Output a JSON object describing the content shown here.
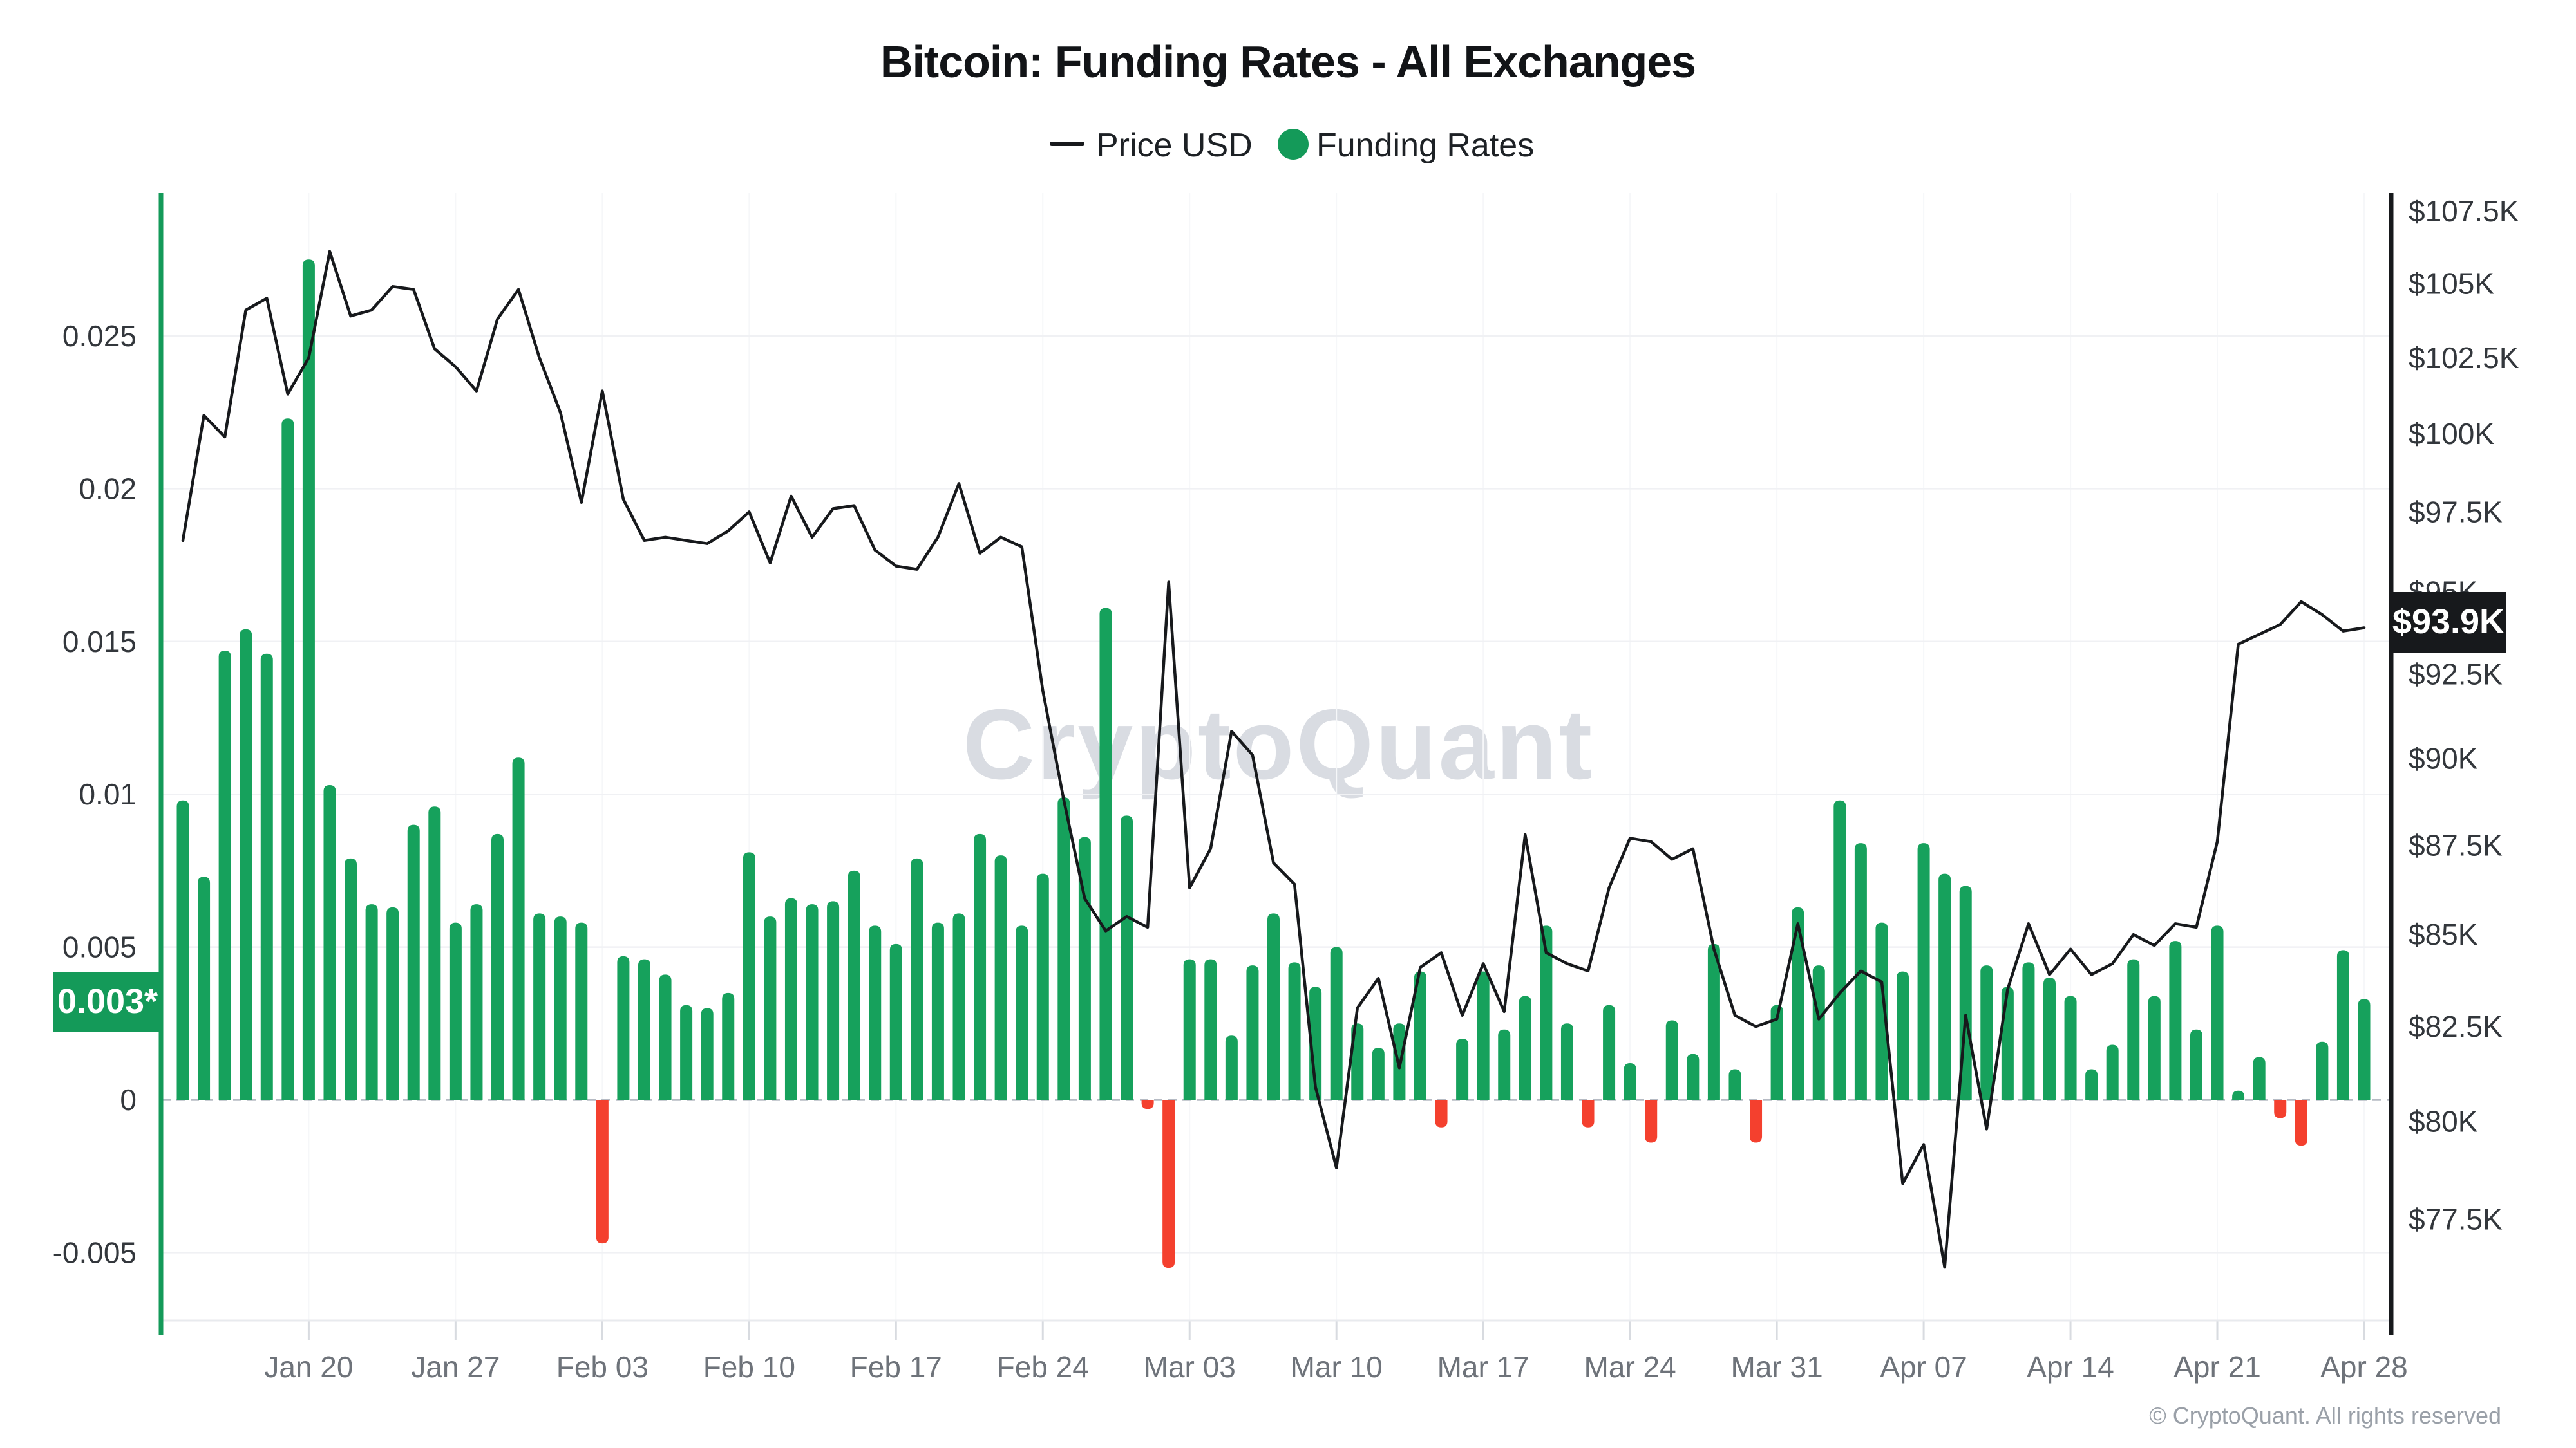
{
  "title": "Bitcoin: Funding Rates - All Exchanges",
  "legend": {
    "price": {
      "label": "Price USD",
      "color": "#17191c",
      "icon": "dash"
    },
    "funding": {
      "label": "Funding Rates",
      "color": "#149a59",
      "icon": "dot"
    }
  },
  "watermark": "CryptoQuant",
  "footer": "© CryptoQuant. All rights reserved",
  "badges": {
    "funding_current": {
      "text": "0.003*",
      "bg": "#149a59"
    },
    "price_current": {
      "text": "$93.9K",
      "bg": "#17191c"
    }
  },
  "colors": {
    "bar_positive": "#16a15c",
    "bar_negative": "#f4402e",
    "price_line": "#17191c",
    "left_axis": "#149a59",
    "right_axis": "#17191c",
    "gridline": "#f0f1f4",
    "weekly_gridline": "#f6f7f9",
    "zero_line": "#b6bbc4",
    "bottom_axis": "#e8eaee",
    "tick_mark": "#d8dbe0"
  },
  "axes": {
    "left": {
      "name": "Funding Rates",
      "tick_values": [
        0.025,
        0.02,
        0.015,
        0.01,
        0.005,
        0,
        -0.005
      ],
      "tick_labels": [
        "0.025",
        "0.02",
        "0.015",
        "0.01",
        "0.005",
        "0",
        "-0.005"
      ]
    },
    "right": {
      "name": "Price USD",
      "scale": "log",
      "tick_values_k": [
        107.5,
        105,
        102.5,
        100,
        97.5,
        95,
        92.5,
        90,
        87.5,
        85,
        82.5,
        80,
        77.5
      ],
      "tick_labels": [
        "$107.5K",
        "$105K",
        "$102.5K",
        "$100K",
        "$97.5K",
        "$95K",
        "$92.5K",
        "$90K",
        "$87.5K",
        "$85K",
        "$82.5K",
        "$80K",
        "$77.5K"
      ]
    },
    "x": {
      "week_labels": [
        "Jan 20",
        "Jan 27",
        "Feb 03",
        "Feb 10",
        "Feb 17",
        "Feb 24",
        "Mar 03",
        "Mar 10",
        "Mar 17",
        "Mar 24",
        "Mar 31",
        "Apr 07",
        "Apr 14",
        "Apr 21",
        "Apr 28"
      ],
      "week_label_indices": [
        6,
        13,
        20,
        27,
        34,
        41,
        48,
        55,
        62,
        69,
        76,
        83,
        90,
        97,
        104
      ]
    }
  },
  "chart_data": {
    "type": [
      "bar",
      "line"
    ],
    "title": "Bitcoin: Funding Rates - All Exchanges",
    "legend_position": "top",
    "grid": true,
    "left_ylim": [
      -0.0075,
      0.0295
    ],
    "right_ylim_k": [
      75.5,
      108.5
    ],
    "right_scale": "log",
    "categories": [
      "Jan 14",
      "Jan 15",
      "Jan 16",
      "Jan 17",
      "Jan 18",
      "Jan 19",
      "Jan 20",
      "Jan 21",
      "Jan 22",
      "Jan 23",
      "Jan 24",
      "Jan 25",
      "Jan 26",
      "Jan 27",
      "Jan 28",
      "Jan 29",
      "Jan 30",
      "Jan 31",
      "Feb 01",
      "Feb 02",
      "Feb 03",
      "Feb 04",
      "Feb 05",
      "Feb 06",
      "Feb 07",
      "Feb 08",
      "Feb 09",
      "Feb 10",
      "Feb 11",
      "Feb 12",
      "Feb 13",
      "Feb 14",
      "Feb 15",
      "Feb 16",
      "Feb 17",
      "Feb 18",
      "Feb 19",
      "Feb 20",
      "Feb 21",
      "Feb 22",
      "Feb 23",
      "Feb 24",
      "Feb 25",
      "Feb 26",
      "Feb 27",
      "Feb 28",
      "Mar 01",
      "Mar 02",
      "Mar 03",
      "Mar 04",
      "Mar 05",
      "Mar 06",
      "Mar 07",
      "Mar 08",
      "Mar 09",
      "Mar 10",
      "Mar 11",
      "Mar 12",
      "Mar 13",
      "Mar 14",
      "Mar 15",
      "Mar 16",
      "Mar 17",
      "Mar 18",
      "Mar 19",
      "Mar 20",
      "Mar 21",
      "Mar 22",
      "Mar 23",
      "Mar 24",
      "Mar 25",
      "Mar 26",
      "Mar 27",
      "Mar 28",
      "Mar 29",
      "Mar 30",
      "Mar 31",
      "Apr 01",
      "Apr 02",
      "Apr 03",
      "Apr 04",
      "Apr 05",
      "Apr 06",
      "Apr 07",
      "Apr 08",
      "Apr 09",
      "Apr 10",
      "Apr 11",
      "Apr 12",
      "Apr 13",
      "Apr 14",
      "Apr 15",
      "Apr 16",
      "Apr 17",
      "Apr 18",
      "Apr 19",
      "Apr 20",
      "Apr 21",
      "Apr 22",
      "Apr 23",
      "Apr 24",
      "Apr 25",
      "Apr 26",
      "Apr 27",
      "Apr 28"
    ],
    "series": [
      {
        "name": "Funding Rates",
        "type": "bar",
        "axis": "left",
        "values": [
          0.0098,
          0.0073,
          0.0147,
          0.0154,
          0.0146,
          0.0223,
          0.0275,
          0.0103,
          0.0079,
          0.0064,
          0.0063,
          0.009,
          0.0096,
          0.0058,
          0.0064,
          0.0087,
          0.0112,
          0.0061,
          0.006,
          0.0058,
          -0.0047,
          0.0047,
          0.0046,
          0.0041,
          0.0031,
          0.003,
          0.0035,
          0.0081,
          0.006,
          0.0066,
          0.0064,
          0.0065,
          0.0075,
          0.0057,
          0.0051,
          0.0079,
          0.0058,
          0.0061,
          0.0087,
          0.008,
          0.0057,
          0.0074,
          0.0099,
          0.0086,
          0.0161,
          0.0093,
          -0.0003,
          -0.0055,
          0.0046,
          0.0046,
          0.0021,
          0.0044,
          0.0061,
          0.0045,
          0.0037,
          0.005,
          0.0025,
          0.0017,
          0.0025,
          0.0042,
          -0.0009,
          0.002,
          0.0042,
          0.0023,
          0.0034,
          0.0057,
          0.0025,
          -0.0009,
          0.0031,
          0.0012,
          -0.0014,
          0.0026,
          0.0015,
          0.0051,
          0.001,
          -0.0014,
          0.0031,
          0.0063,
          0.0044,
          0.0098,
          0.0084,
          0.0058,
          0.0042,
          0.0084,
          0.0074,
          0.007,
          0.0044,
          0.0037,
          0.0045,
          0.004,
          0.0034,
          0.001,
          0.0018,
          0.0046,
          0.0034,
          0.0052,
          0.0023,
          0.0057,
          0.0003,
          0.0014,
          -0.0006,
          -0.0015,
          0.0019,
          0.0049,
          0.0033
        ]
      },
      {
        "name": "Price USD",
        "type": "line",
        "axis": "right",
        "unit": "K USD",
        "values": [
          96.6,
          100.6,
          99.9,
          104.1,
          104.5,
          101.3,
          102.5,
          106.1,
          103.9,
          104.1,
          104.9,
          104.8,
          102.8,
          102.2,
          101.4,
          103.8,
          104.8,
          102.5,
          100.7,
          97.8,
          101.4,
          97.9,
          96.6,
          96.7,
          96.6,
          96.5,
          96.9,
          97.5,
          95.9,
          98.0,
          96.7,
          97.6,
          97.7,
          96.3,
          95.8,
          95.7,
          96.7,
          98.4,
          96.2,
          96.7,
          96.4,
          92.0,
          88.8,
          86.0,
          85.1,
          85.5,
          85.2,
          95.3,
          86.3,
          87.4,
          90.8,
          90.1,
          87.0,
          86.4,
          80.9,
          78.8,
          83.0,
          83.8,
          81.4,
          84.1,
          84.5,
          82.8,
          84.2,
          82.9,
          87.8,
          84.5,
          84.2,
          84.0,
          86.3,
          87.7,
          87.6,
          87.1,
          87.4,
          84.6,
          82.8,
          82.5,
          82.7,
          85.3,
          82.7,
          83.4,
          84.0,
          83.7,
          78.4,
          79.4,
          76.3,
          82.8,
          79.8,
          83.5,
          85.3,
          83.9,
          84.6,
          83.9,
          84.2,
          85.0,
          84.7,
          85.3,
          85.2,
          87.6,
          93.4,
          93.7,
          94.0,
          94.7,
          94.3,
          93.8,
          93.9
        ]
      }
    ]
  }
}
